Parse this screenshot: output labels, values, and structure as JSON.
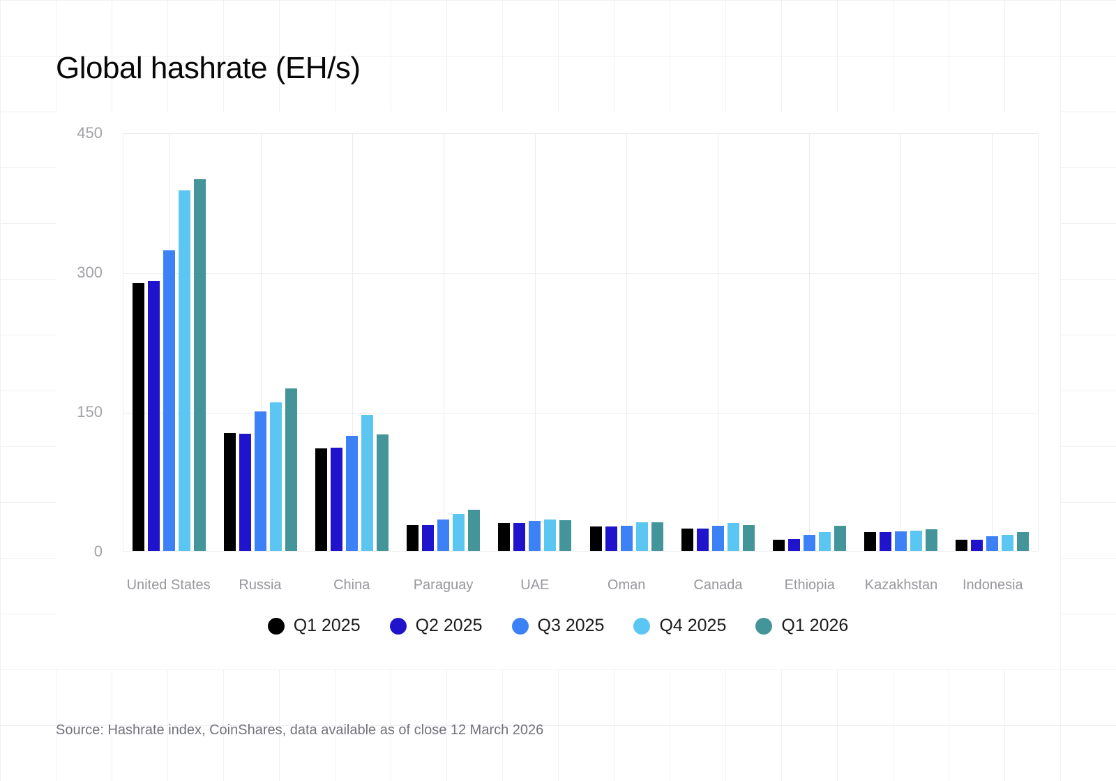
{
  "title": "Global hashrate (EH/s)",
  "source": "Source: Hashrate index, CoinShares, data available as of close 12 March 2026",
  "chart_data": {
    "type": "bar",
    "title": "Global hashrate (EH/s)",
    "xlabel": "",
    "ylabel": "EH/s",
    "ylim": [
      0,
      450
    ],
    "yticks": [
      0,
      150,
      300,
      450
    ],
    "grid": true,
    "legend_position": "bottom",
    "categories": [
      "United States",
      "Russia",
      "China",
      "Paraguay",
      "UAE",
      "Oman",
      "Canada",
      "Ethiopia",
      "Kazakhstan",
      "Indonesia"
    ],
    "series": [
      {
        "name": "Q1 2025",
        "color": "#000000",
        "values": [
          288,
          127,
          110,
          28,
          30,
          26,
          24,
          12,
          20,
          12
        ]
      },
      {
        "name": "Q2 2025",
        "color": "#1f14cb",
        "values": [
          290,
          126,
          111,
          28,
          30,
          26,
          24,
          13,
          20,
          12
        ]
      },
      {
        "name": "Q3 2025",
        "color": "#3d81f6",
        "values": [
          323,
          150,
          124,
          34,
          32,
          27,
          27,
          17,
          21,
          16
        ]
      },
      {
        "name": "Q4 2025",
        "color": "#5cc6f3",
        "values": [
          388,
          160,
          146,
          40,
          34,
          31,
          30,
          20,
          22,
          17
        ]
      },
      {
        "name": "Q1 2026",
        "color": "#439599",
        "values": [
          400,
          175,
          125,
          44,
          33,
          31,
          28,
          27,
          23,
          20
        ]
      }
    ]
  }
}
